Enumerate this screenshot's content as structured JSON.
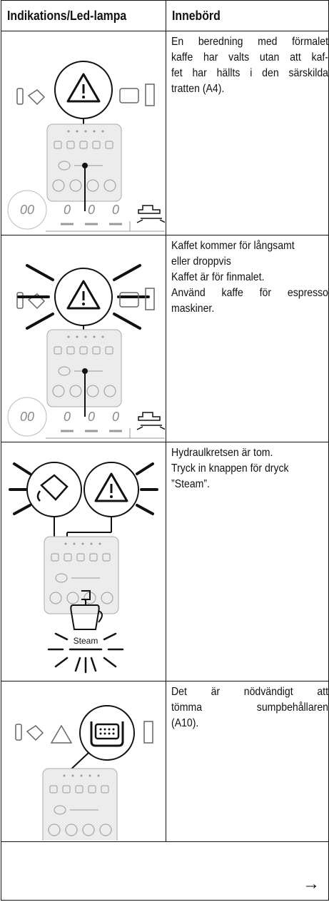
{
  "header": {
    "col1": "Indikations/Led-lampa",
    "col2": "Innebörd"
  },
  "rows": [
    {
      "lines": [
        "En beredning med förmalet",
        "kaffe har valts utan att kaf-",
        "fet har hällts i den särskilda",
        "tratten (A4)."
      ]
    },
    {
      "lines": [
        "Kaffet kommer för långsamt",
        "eller droppvis",
        "Kaffet är för finmalet.",
        "Använd kaffe för espresso",
        "maskiner."
      ]
    },
    {
      "lines": [
        "Hydraulkretsen är tom.",
        "Tryck in knappen för dryck",
        "”Steam”."
      ],
      "icon_label": "Steam"
    },
    {
      "lines": [
        "Det är nödvändigt att",
        "tömma sumpbehållaren",
        "(A10)."
      ]
    }
  ],
  "footer": {
    "arrow": "→"
  }
}
